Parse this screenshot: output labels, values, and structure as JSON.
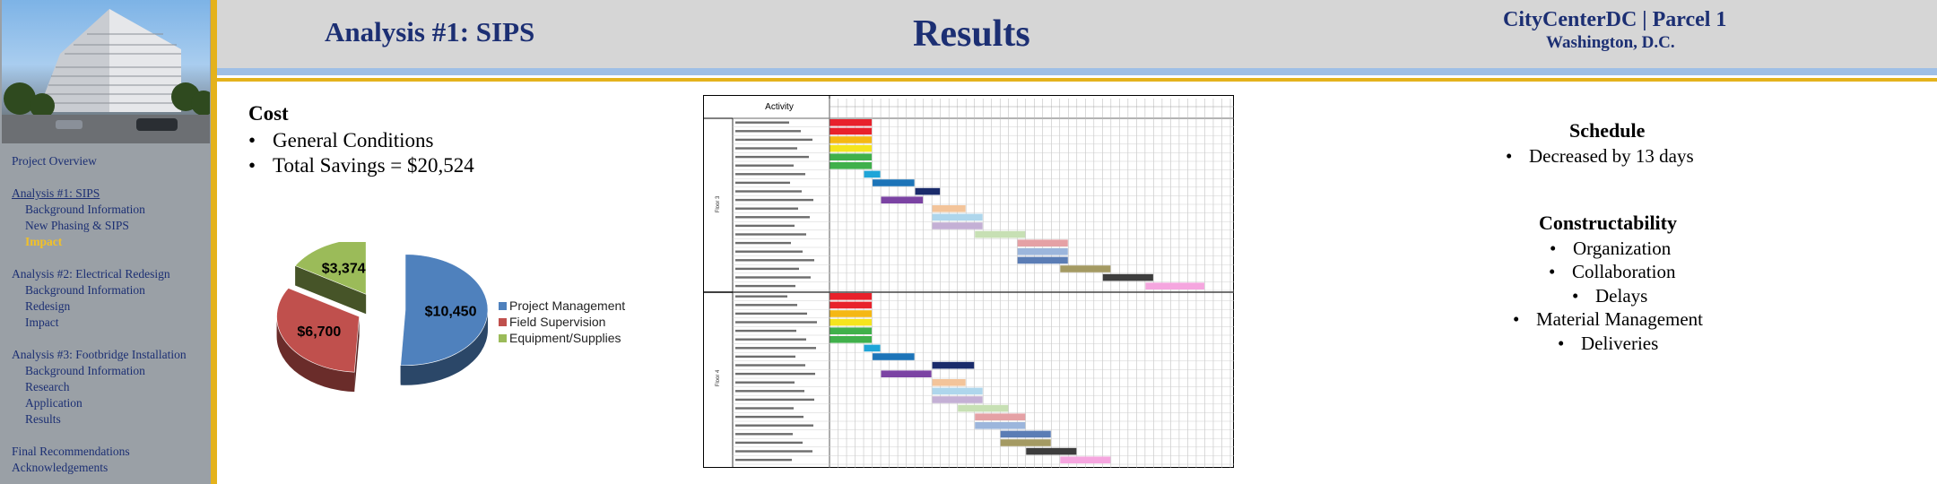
{
  "header": {
    "analysis_title": "Analysis #1: SIPS",
    "page_title": "Results",
    "project_name": "CityCenterDC | Parcel 1",
    "project_location": "Washington, D.C."
  },
  "sidebar": {
    "items": [
      {
        "label": "Project Overview",
        "level": 0
      },
      {
        "gap": true
      },
      {
        "label": "Analysis #1: SIPS",
        "level": 0,
        "state": "active"
      },
      {
        "label": "Background Information",
        "level": 1
      },
      {
        "label": "New Phasing & SIPS",
        "level": 1
      },
      {
        "label": "Impact",
        "level": 1,
        "state": "current"
      },
      {
        "gap": true
      },
      {
        "label": "Analysis #2: Electrical  Redesign",
        "level": 0
      },
      {
        "label": "Background Information",
        "level": 1
      },
      {
        "label": "Redesign",
        "level": 1
      },
      {
        "label": "Impact",
        "level": 1
      },
      {
        "gap": true
      },
      {
        "label": "Analysis #3: Footbridge Installation",
        "level": 0
      },
      {
        "label": "Background Information",
        "level": 1
      },
      {
        "label": "Research",
        "level": 1
      },
      {
        "label": "Application",
        "level": 1
      },
      {
        "label": "Results",
        "level": 1
      },
      {
        "gap": true
      },
      {
        "label": "Final Recommendations",
        "level": 0
      },
      {
        "label": "Acknowledgements",
        "level": 0
      }
    ]
  },
  "cost": {
    "heading": "Cost",
    "bullets": [
      "General Conditions",
      "Total Savings = $20,524"
    ]
  },
  "chart_data": {
    "type": "pie",
    "slices": [
      {
        "label": "Project Management",
        "value": 10450,
        "value_label": "$10,450",
        "color": "#4f81bd"
      },
      {
        "label": "Field Supervision",
        "value": 6700,
        "value_label": "$6,700",
        "color": "#c0504d"
      },
      {
        "label": "Equipment/Supplies",
        "value": 3374,
        "value_label": "$3,374",
        "color": "#9bbb59"
      }
    ],
    "legend_position": "right",
    "exploded": true,
    "three_d": true
  },
  "gantt": {
    "activity_header": "Activity",
    "floor_labels": [
      "Floor 3",
      "Floor 4"
    ],
    "colors": [
      "#e8212b",
      "#f5b814",
      "#f5e51e",
      "#40b04b",
      "#1fa5d8",
      "#1d74b8",
      "#1a2b6b",
      "#7b43a3",
      "#f3c49a",
      "#aed6ec",
      "#c4b0d5",
      "#c7e0b4",
      "#e5a1a5",
      "#9cb6dc",
      "#5b7db5",
      "#a49a63",
      "#3d3d3d",
      "#f5a6df"
    ]
  },
  "schedule": {
    "heading": "Schedule",
    "bullets": [
      "Decreased by 13 days"
    ]
  },
  "constructability": {
    "heading": "Constructability",
    "items": [
      "Organization",
      "Collaboration",
      "Delays",
      "Material Management",
      "Deliveries"
    ]
  }
}
